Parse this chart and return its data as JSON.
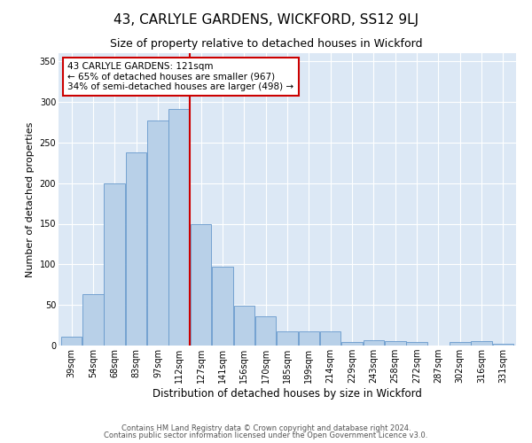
{
  "title": "43, CARLYLE GARDENS, WICKFORD, SS12 9LJ",
  "subtitle": "Size of property relative to detached houses in Wickford",
  "xlabel": "Distribution of detached houses by size in Wickford",
  "ylabel": "Number of detached properties",
  "categories": [
    "39sqm",
    "54sqm",
    "68sqm",
    "83sqm",
    "97sqm",
    "112sqm",
    "127sqm",
    "141sqm",
    "156sqm",
    "170sqm",
    "185sqm",
    "199sqm",
    "214sqm",
    "229sqm",
    "243sqm",
    "258sqm",
    "272sqm",
    "287sqm",
    "302sqm",
    "316sqm",
    "331sqm"
  ],
  "values": [
    11,
    63,
    200,
    238,
    277,
    291,
    150,
    97,
    49,
    36,
    17,
    18,
    18,
    4,
    7,
    6,
    4,
    0,
    4,
    5,
    2
  ],
  "bar_color": "#b8d0e8",
  "bar_edge_color": "#6699cc",
  "vline_color": "#cc0000",
  "annotation_text": "43 CARLYLE GARDENS: 121sqm\n← 65% of detached houses are smaller (967)\n34% of semi-detached houses are larger (498) →",
  "annotation_box_facecolor": "#ffffff",
  "annotation_box_edgecolor": "#cc0000",
  "ylim": [
    0,
    360
  ],
  "yticks": [
    0,
    50,
    100,
    150,
    200,
    250,
    300,
    350
  ],
  "footer1": "Contains HM Land Registry data © Crown copyright and database right 2024.",
  "footer2": "Contains public sector information licensed under the Open Government Licence v3.0.",
  "bg_color": "#ffffff",
  "plot_bg_color": "#dce8f5",
  "grid_color": "#ffffff",
  "title_fontsize": 11,
  "subtitle_fontsize": 9,
  "tick_fontsize": 7,
  "ylabel_fontsize": 8,
  "xlabel_fontsize": 8.5,
  "annotation_fontsize": 7.5,
  "footer_fontsize": 6
}
